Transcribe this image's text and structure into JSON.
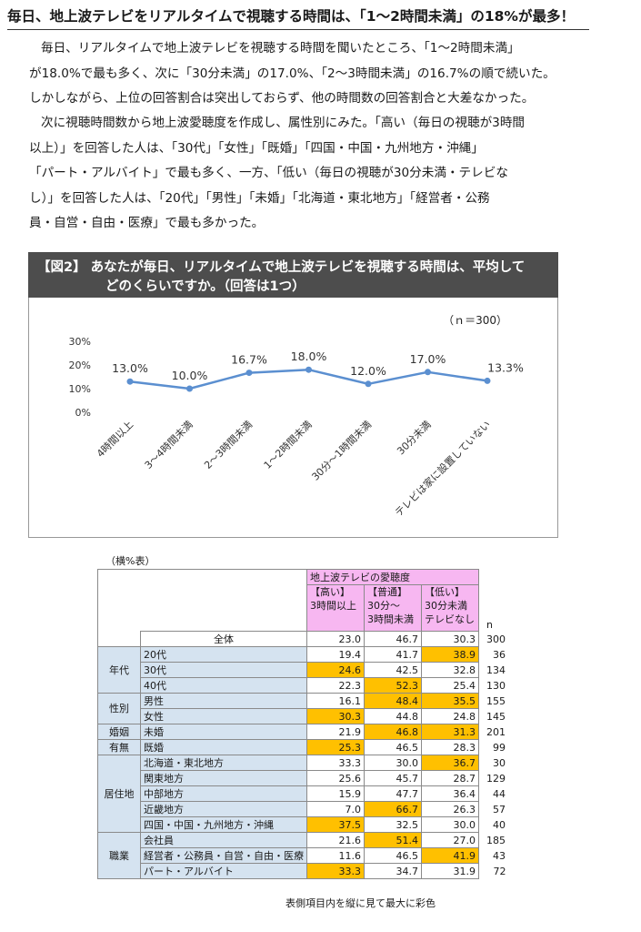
{
  "headline": "毎日、地上波テレビをリアルタイムで視聴する時間は、「1～2時間未満」の18%が最多！",
  "paragraph1": [
    "毎日、リアルタイムで地上波テレビを視聴する時間を聞いたところ、「1～2時間未満」",
    "が18.0%で最も多く、次に「30分未満」の17.0%、「2～3時間未満」の16.7%の順で続いた。",
    "しかしながら、上位の回答割合は突出しておらず、他の時間数の回答割合と大差なかった。"
  ],
  "paragraph2": [
    "次に視聴時間数から地上波愛聴度を作成し、属性別にみた。「高い（毎日の視聴が3時間",
    "以上）」を回答した人は、「30代」「女性」「既婚」「四国・中国・九州地方・沖縄」",
    "「パート・アルバイト」で最も多く、一方、「低い（毎日の視聴が30分未満・テレビな",
    "し）」を回答した人は、「20代」「男性」「未婚」「北海道・東北地方」「経営者・公務",
    "員・自営・自由・医療」で最も多かった。"
  ],
  "figure": {
    "title_line1": "【図2】 あなたが毎日、リアルタイムで地上波テレビを視聴する時間は、平均して",
    "title_line2": "どのくらいですか。（回答は1つ）",
    "n_label": "（ｎ＝300）"
  },
  "chart_data": {
    "type": "line",
    "categories": [
      "4時間以上",
      "3～4時間未満",
      "2～3時間未満",
      "1～2時間未満",
      "30分～1時間未満",
      "30分未満",
      "テレビは家に設置していない"
    ],
    "values": [
      13.0,
      10.0,
      16.7,
      18.0,
      12.0,
      17.0,
      13.3
    ],
    "value_labels": [
      "13.0%",
      "10.0%",
      "16.7%",
      "18.0%",
      "12.0%",
      "17.0%",
      "13.3%"
    ],
    "y_ticks": [
      "0%",
      "10%",
      "20%",
      "30%"
    ],
    "ylim": [
      0,
      30
    ],
    "color": "#5b8fd0",
    "grid": false
  },
  "table": {
    "caption": "（横%表）",
    "header_group": "地上波テレビの愛聴度",
    "columns": [
      {
        "l1": "【高い】",
        "l2": "3時間以上",
        "l3": ""
      },
      {
        "l1": "【普通】",
        "l2": "30分～",
        "l3": "3時間未満"
      },
      {
        "l1": "【低い】",
        "l2": "30分未満",
        "l3": "テレビなし"
      }
    ],
    "n_header": "n",
    "rows": [
      {
        "group": "",
        "label": "全体",
        "values": [
          "23.0",
          "46.7",
          "30.3"
        ],
        "n": "300",
        "hl": []
      },
      {
        "group": "年代",
        "label": "20代",
        "values": [
          "19.4",
          "41.7",
          "38.9"
        ],
        "n": "36",
        "hl": [
          2
        ]
      },
      {
        "group": "",
        "label": "30代",
        "values": [
          "24.6",
          "42.5",
          "32.8"
        ],
        "n": "134",
        "hl": [
          0
        ]
      },
      {
        "group": "",
        "label": "40代",
        "values": [
          "22.3",
          "52.3",
          "25.4"
        ],
        "n": "130",
        "hl": [
          1
        ]
      },
      {
        "group": "性別",
        "label": "男性",
        "values": [
          "16.1",
          "48.4",
          "35.5"
        ],
        "n": "155",
        "hl": [
          1,
          2
        ]
      },
      {
        "group": "",
        "label": "女性",
        "values": [
          "30.3",
          "44.8",
          "24.8"
        ],
        "n": "145",
        "hl": [
          0
        ]
      },
      {
        "group": "婚姻",
        "label": "未婚",
        "values": [
          "21.9",
          "46.8",
          "31.3"
        ],
        "n": "201",
        "hl": [
          1,
          2
        ]
      },
      {
        "group": "有無",
        "label": "既婚",
        "values": [
          "25.3",
          "46.5",
          "28.3"
        ],
        "n": "99",
        "hl": [
          0
        ]
      },
      {
        "group": "居住地",
        "label": "北海道・東北地方",
        "values": [
          "33.3",
          "30.0",
          "36.7"
        ],
        "n": "30",
        "hl": [
          2
        ]
      },
      {
        "group": "",
        "label": "関東地方",
        "values": [
          "25.6",
          "45.7",
          "28.7"
        ],
        "n": "129",
        "hl": []
      },
      {
        "group": "",
        "label": "中部地方",
        "values": [
          "15.9",
          "47.7",
          "36.4"
        ],
        "n": "44",
        "hl": []
      },
      {
        "group": "",
        "label": "近畿地方",
        "values": [
          "7.0",
          "66.7",
          "26.3"
        ],
        "n": "57",
        "hl": [
          1
        ]
      },
      {
        "group": "",
        "label": "四国・中国・九州地方・沖縄",
        "values": [
          "37.5",
          "32.5",
          "30.0"
        ],
        "n": "40",
        "hl": [
          0
        ]
      },
      {
        "group": "",
        "label": "会社員",
        "values": [
          "21.6",
          "51.4",
          "27.0"
        ],
        "n": "185",
        "hl": [
          1
        ]
      },
      {
        "group": "職業",
        "label": "経営者・公務員・自営・自由・医療",
        "values": [
          "11.6",
          "46.5",
          "41.9"
        ],
        "n": "43",
        "hl": [
          2
        ]
      },
      {
        "group": "",
        "label": "パート・アルバイト",
        "values": [
          "33.3",
          "34.7",
          "31.9"
        ],
        "n": "72",
        "hl": [
          0
        ]
      }
    ],
    "footnote": "表側項目内を縦に見て最大に彩色",
    "highlight_color": "#ffc000"
  }
}
